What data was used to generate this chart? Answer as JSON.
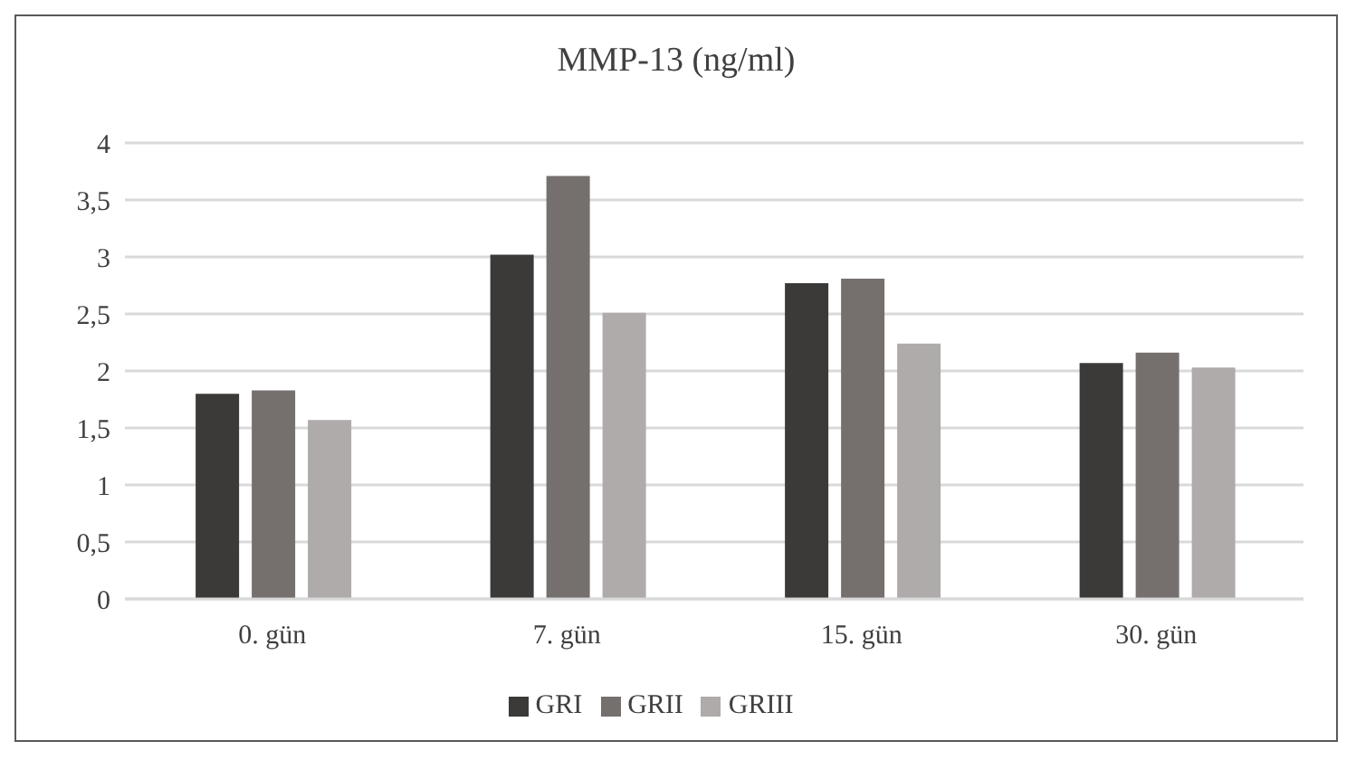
{
  "chart_data": {
    "type": "bar",
    "title": "MMP-13 (ng/ml)",
    "categories": [
      "0. gün",
      "7. gün",
      "15. gün",
      "30. gün"
    ],
    "series": [
      {
        "name": "GRI",
        "color": "#3b3a38",
        "values": [
          1.8,
          3.02,
          2.77,
          2.07
        ]
      },
      {
        "name": "GRII",
        "color": "#75706e",
        "values": [
          1.83,
          3.71,
          2.81,
          2.16
        ]
      },
      {
        "name": "GRIII",
        "color": "#aeabaa",
        "values": [
          1.57,
          2.51,
          2.24,
          2.03
        ]
      }
    ],
    "ylim": [
      0,
      4
    ],
    "yticks": [
      0,
      {
        "value": 0.5,
        "label": "0,5"
      },
      1,
      {
        "value": 1.5,
        "label": "1,5"
      },
      2,
      {
        "value": 2.5,
        "label": "2,5"
      },
      3,
      {
        "value": 3.5,
        "label": "3,5"
      },
      4
    ],
    "grid": "y",
    "legend": "bottom"
  }
}
